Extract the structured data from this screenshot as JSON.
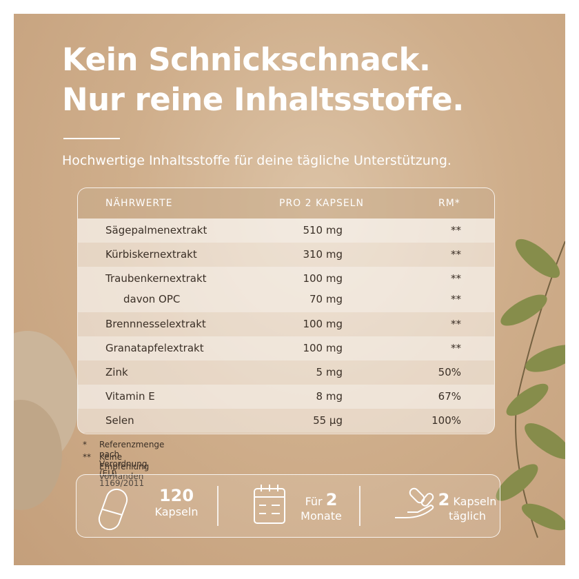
{
  "header": {
    "title_lines": [
      "Kein Schnickschnack.",
      "Nur reine Inhaltsstoffe."
    ],
    "subtitle": "Hochwertige Inhaltsstoffe für deine tägliche Unterstützung."
  },
  "table": {
    "columns": [
      "NÄHRWERTE",
      "PRO 2 KAPSELN",
      "RM*"
    ],
    "rows": [
      {
        "name": "Sägepalmenextrakt",
        "amount": "510 mg",
        "rm": "**"
      },
      {
        "name": "Kürbiskernextrakt",
        "amount": "310 mg",
        "rm": "**"
      },
      {
        "name": "Traubenkernextrakt",
        "amount": "100 mg",
        "rm": "**",
        "sub": {
          "name": "davon OPC",
          "amount": "70 mg",
          "rm": "**"
        }
      },
      {
        "name": "Brennnesselextrakt",
        "amount": "100 mg",
        "rm": "**"
      },
      {
        "name": "Granatapfelextrakt",
        "amount": "100 mg",
        "rm": "**"
      },
      {
        "name": "Zink",
        "amount": "5 mg",
        "rm": "50%"
      },
      {
        "name": "Vitamin E",
        "amount": "8 mg",
        "rm": "67%"
      },
      {
        "name": "Selen",
        "amount": "55 µg",
        "rm": "100%"
      }
    ]
  },
  "footnotes": [
    {
      "mark": "*",
      "text": "Referenzmenge nach Verordnung (EU) 1169/2011"
    },
    {
      "mark": "**",
      "text": "Keine Empfehlung vorhanden"
    }
  ],
  "badges": [
    {
      "number": "120",
      "label": "Kapseln"
    },
    {
      "prefix": "Für",
      "number": "2",
      "label": "Monate"
    },
    {
      "number": "2",
      "suffix": "Kapseln",
      "label": "täglich"
    }
  ]
}
